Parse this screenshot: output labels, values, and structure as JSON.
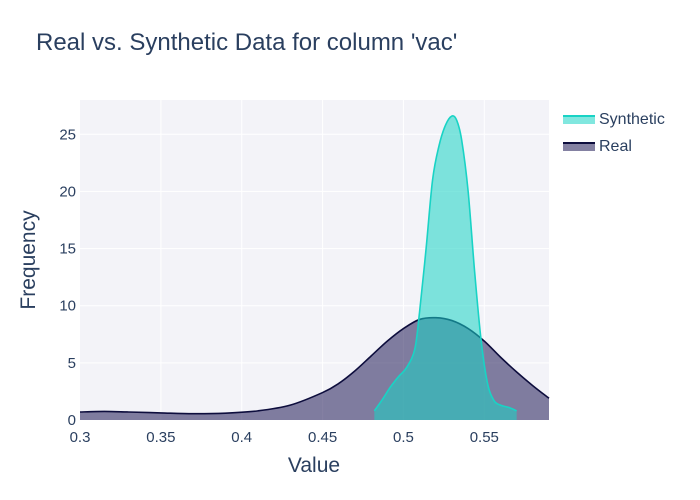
{
  "chart_data": {
    "type": "area",
    "title": "Real vs. Synthetic Data for column 'vac'",
    "xlabel": "Value",
    "ylabel": "Frequency",
    "xlim": [
      0.3,
      0.59
    ],
    "ylim": [
      0,
      28
    ],
    "x_ticks": [
      0.3,
      0.35,
      0.4,
      0.45,
      0.5,
      0.55
    ],
    "x_tick_labels": [
      "0.3",
      "0.35",
      "0.4",
      "0.45",
      "0.5",
      "0.55"
    ],
    "y_ticks": [
      0,
      5,
      10,
      15,
      20,
      25
    ],
    "y_tick_labels": [
      "0",
      "5",
      "10",
      "15",
      "20",
      "25"
    ],
    "grid": true,
    "legend_position": "top-right",
    "series": [
      {
        "name": "Real",
        "line_color": "#0d0d3d",
        "fill_color": "rgba(50,45,100,0.6)",
        "x": [
          0.3,
          0.315,
          0.33,
          0.35,
          0.37,
          0.39,
          0.41,
          0.43,
          0.45,
          0.46,
          0.47,
          0.48,
          0.49,
          0.5,
          0.51,
          0.52,
          0.53,
          0.54,
          0.55,
          0.56,
          0.57,
          0.58,
          0.59
        ],
        "y": [
          0.7,
          0.75,
          0.7,
          0.62,
          0.55,
          0.6,
          0.8,
          1.3,
          2.4,
          3.2,
          4.3,
          5.6,
          6.9,
          8.0,
          8.8,
          8.95,
          8.7,
          8.0,
          6.9,
          5.5,
          4.2,
          3.0,
          1.9
        ]
      },
      {
        "name": "Synthetic",
        "line_color": "#19d3c5",
        "fill_color": "rgba(25,211,197,0.55)",
        "x": [
          0.482,
          0.487,
          0.492,
          0.497,
          0.502,
          0.507,
          0.51,
          0.514,
          0.518,
          0.522,
          0.526,
          0.53,
          0.533,
          0.536,
          0.54,
          0.544,
          0.548,
          0.552,
          0.556,
          0.56,
          0.565,
          0.57
        ],
        "y": [
          0.8,
          1.8,
          2.9,
          3.8,
          4.6,
          6.2,
          9.5,
          15.0,
          21.0,
          24.0,
          25.8,
          26.6,
          26.2,
          24.5,
          20.0,
          13.0,
          7.0,
          3.2,
          1.7,
          1.3,
          1.1,
          0.8
        ]
      }
    ]
  }
}
